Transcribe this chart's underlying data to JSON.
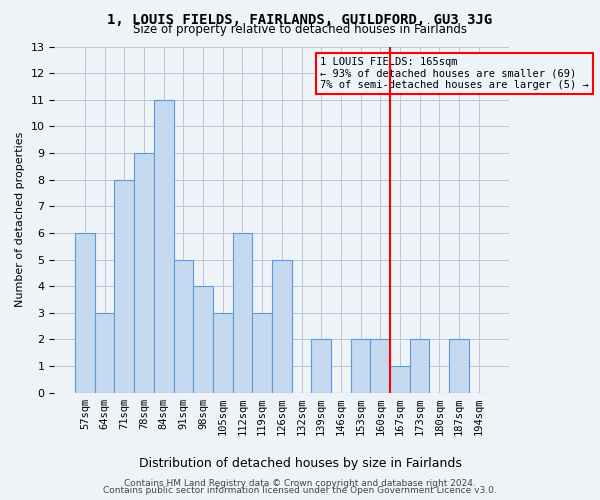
{
  "title": "1, LOUIS FIELDS, FAIRLANDS, GUILDFORD, GU3 3JG",
  "subtitle": "Size of property relative to detached houses in Fairlands",
  "xlabel": "Distribution of detached houses by size in Fairlands",
  "ylabel": "Number of detached properties",
  "footer_line1": "Contains HM Land Registry data © Crown copyright and database right 2024.",
  "footer_line2": "Contains public sector information licensed under the Open Government Licence v3.0.",
  "categories": [
    "57sqm",
    "64sqm",
    "71sqm",
    "78sqm",
    "84sqm",
    "91sqm",
    "98sqm",
    "105sqm",
    "112sqm",
    "119sqm",
    "126sqm",
    "132sqm",
    "139sqm",
    "146sqm",
    "153sqm",
    "160sqm",
    "167sqm",
    "173sqm",
    "180sqm",
    "187sqm",
    "194sqm"
  ],
  "values": [
    6,
    3,
    8,
    9,
    11,
    5,
    4,
    3,
    6,
    3,
    5,
    0,
    2,
    0,
    2,
    2,
    1,
    2,
    0,
    2,
    0
  ],
  "bar_color": "#c5d9f1",
  "bar_edge_color": "#5b9bd5",
  "grid_color": "#b8c7d8",
  "ylim": [
    0,
    13
  ],
  "yticks": [
    0,
    1,
    2,
    3,
    4,
    5,
    6,
    7,
    8,
    9,
    10,
    11,
    12,
    13
  ],
  "red_line_x": 15.5,
  "annotation_text": "1 LOUIS FIELDS: 165sqm\n← 93% of detached houses are smaller (69)\n7% of semi-detached houses are larger (5) →",
  "bg_color": "#eef3f8"
}
